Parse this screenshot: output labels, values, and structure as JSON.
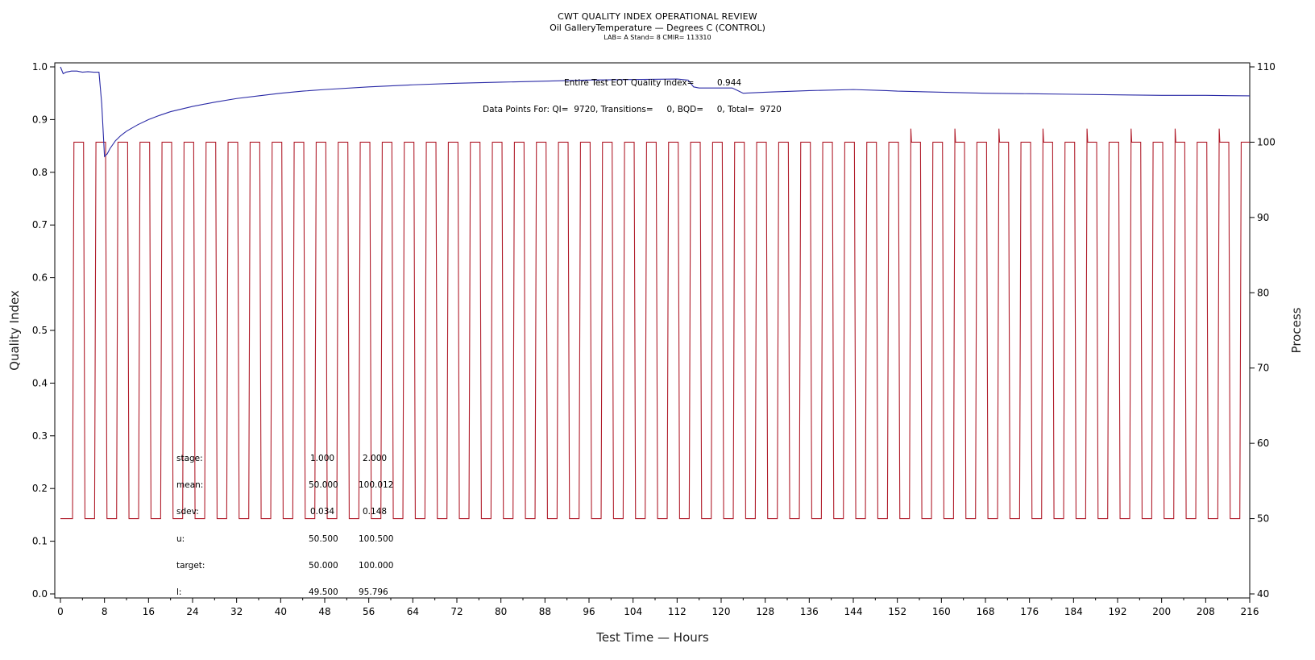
{
  "chart_data": {
    "type": "line",
    "title": "CWT QUALITY INDEX OPERATIONAL REVIEW",
    "subtitle": "Oil GalleryTemperature — Degrees C (CONTROL)",
    "subsubtitle": "LAB= A Stand= 8 CMIR= 113310",
    "xlabel": "Test Time — Hours",
    "ylabel": "Quality Index",
    "y2label": "Process",
    "xlim": [
      0,
      216
    ],
    "ylim": [
      0,
      1.0
    ],
    "y2lim": [
      40,
      110
    ],
    "x_ticks": [
      0,
      8,
      16,
      24,
      32,
      40,
      48,
      56,
      64,
      72,
      80,
      88,
      96,
      104,
      112,
      120,
      128,
      136,
      144,
      152,
      160,
      168,
      176,
      184,
      192,
      200,
      208,
      216
    ],
    "y_ticks": [
      "0.0",
      "0.1",
      "0.2",
      "0.3",
      "0.4",
      "0.5",
      "0.6",
      "0.7",
      "0.8",
      "0.9",
      "1.0"
    ],
    "y2_ticks": [
      "40",
      "50",
      "60",
      "70",
      "80",
      "90",
      "100",
      "110"
    ],
    "grid": false,
    "colors": {
      "quality_index": "#2a2aa6",
      "process": "#b01c2a"
    },
    "series": [
      {
        "axis": "left",
        "x": [
          0,
          0.5,
          1,
          2,
          3,
          4,
          5,
          6,
          7,
          7.5,
          8,
          8.5,
          9,
          10,
          11,
          12,
          14,
          16,
          18,
          20,
          22,
          24,
          28,
          32,
          36,
          40,
          44,
          48,
          56,
          64,
          72,
          80,
          88,
          96,
          104,
          112,
          114,
          115,
          116,
          118,
          120,
          122,
          123,
          124,
          126,
          128,
          136,
          144,
          150,
          152,
          160,
          168,
          176,
          184,
          192,
          200,
          208,
          216
        ],
        "values": [
          1.0,
          0.987,
          0.99,
          0.992,
          0.992,
          0.99,
          0.991,
          0.99,
          0.99,
          0.93,
          0.83,
          0.835,
          0.845,
          0.86,
          0.87,
          0.878,
          0.89,
          0.9,
          0.908,
          0.915,
          0.92,
          0.925,
          0.933,
          0.94,
          0.945,
          0.95,
          0.954,
          0.957,
          0.962,
          0.966,
          0.969,
          0.971,
          0.973,
          0.975,
          0.976,
          0.977,
          0.975,
          0.962,
          0.96,
          0.96,
          0.96,
          0.96,
          0.955,
          0.95,
          0.951,
          0.952,
          0.955,
          0.957,
          0.955,
          0.954,
          0.952,
          0.95,
          0.949,
          0.948,
          0.947,
          0.946,
          0.946,
          0.945
        ]
      },
      {
        "axis": "right",
        "pattern": "square-wave",
        "cycle_hours": 4,
        "first_rise_hours": 2.2,
        "low": 50,
        "high": 100,
        "peak_high": 101.8,
        "peaks_from_hours": 148
      }
    ],
    "annotations": {
      "eot_label": "Entire Test EOT Quality Index=",
      "eot_value": "0.944",
      "points_text": "Data Points For: QI=  9720, Transitions=     0, BQD=     0, Total=  9720"
    },
    "stats_table": {
      "rows": [
        {
          "label": "stage:",
          "v1": "1.000",
          "v2": "2.000"
        },
        {
          "label": "mean:",
          "v1": "50.000",
          "v2": "100.012"
        },
        {
          "label": "sdev:",
          "v1": "0.034",
          "v2": "0.148"
        },
        {
          "label": "u:",
          "v1": "50.500",
          "v2": "100.500"
        },
        {
          "label": "target:",
          "v1": "50.000",
          "v2": "100.000"
        },
        {
          "label": "l:",
          "v1": "49.500",
          "v2": "95.796"
        }
      ]
    }
  }
}
